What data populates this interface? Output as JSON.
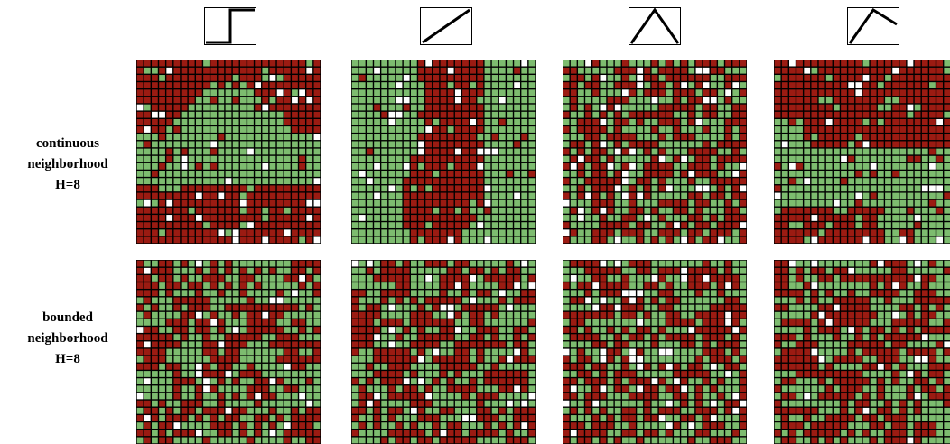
{
  "rows": [
    {
      "label": [
        "continuous",
        "neighborhood",
        "H=8"
      ]
    },
    {
      "label": [
        "bounded",
        "neighborhood",
        "H=8"
      ]
    }
  ],
  "columns": [
    {
      "icon": "step-function-icon"
    },
    {
      "icon": "linear-ramp-icon"
    },
    {
      "icon": "tent-peak-icon"
    },
    {
      "icon": "asymmetric-peak-icon"
    }
  ],
  "colors": {
    "red": "#9b1b12",
    "green": "#7dbc6f",
    "empty": "#ffffff",
    "cell_border": "#000000"
  },
  "lattice": {
    "rows": 25,
    "cols": 25
  }
}
